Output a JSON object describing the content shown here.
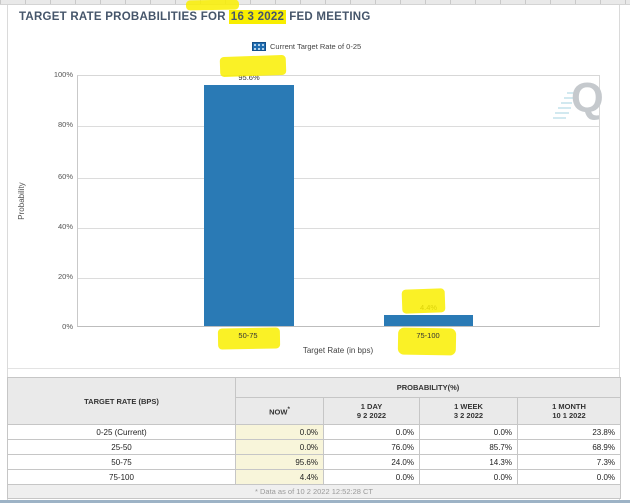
{
  "page": {
    "background": "#ffffff",
    "accent_blue": "#2a7ab5",
    "highlight_yellow": "#f8ee00"
  },
  "header": {
    "title_prefix": "TARGET RATE PROBABILITIES FOR",
    "title_highlight": "16 3 2022",
    "title_suffix": "FED MEETING"
  },
  "legend": {
    "items": [
      {
        "label": "Current Target Rate of 0-25",
        "marker": "blue-patterned-swatch"
      }
    ]
  },
  "watermark": {
    "letter": "Q"
  },
  "chart_data": {
    "type": "bar",
    "title": "TARGET RATE PROBABILITIES FOR 16 3 2022 FED MEETING",
    "categories": [
      "50-75",
      "75-100"
    ],
    "series": [
      {
        "name": "NOW",
        "values": [
          95.6,
          4.4
        ]
      }
    ],
    "value_labels": [
      "95.6%",
      "4.4%"
    ],
    "xlabel": "Target Rate (in bps)",
    "ylabel": "Probability",
    "ylim": [
      0,
      100
    ],
    "yticks": [
      "100%",
      "80%",
      "60%",
      "40%",
      "20%",
      "0%"
    ],
    "grid": true,
    "legend_position": "top",
    "legend_entries": [
      "Current Target Rate of 0-25"
    ],
    "bar_color": "#2a7ab5",
    "annotations": [
      "yellow marker highlights on title date, 95.6%, 4.4%, 50-75, 75-100"
    ]
  },
  "table": {
    "col_rate": "TARGET RATE (BPS)",
    "col_probability": "PROBABILITY(%)",
    "subcols": [
      {
        "line1": "NOW",
        "sup": "*",
        "line2": ""
      },
      {
        "line1": "1 DAY",
        "line2": "9 2 2022"
      },
      {
        "line1": "1 WEEK",
        "line2": "3 2 2022"
      },
      {
        "line1": "1 MONTH",
        "line2": "10 1 2022"
      }
    ],
    "rows": [
      {
        "rate": "0-25 (Current)",
        "now": "0.0%",
        "day": "0.0%",
        "week": "0.0%",
        "month": "23.8%"
      },
      {
        "rate": "25-50",
        "now": "0.0%",
        "day": "76.0%",
        "week": "85.7%",
        "month": "68.9%"
      },
      {
        "rate": "50-75",
        "now": "95.6%",
        "day": "24.0%",
        "week": "14.3%",
        "month": "7.3%"
      },
      {
        "rate": "75-100",
        "now": "4.4%",
        "day": "0.0%",
        "week": "0.0%",
        "month": "0.0%"
      }
    ],
    "footnote": "* Data as of 10 2 2022 12:52:28 CT"
  }
}
